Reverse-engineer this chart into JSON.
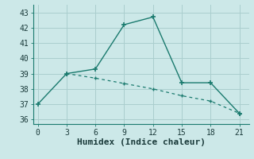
{
  "line1_x": [
    0,
    3,
    6,
    9,
    12,
    15,
    18,
    21
  ],
  "line1_y": [
    37.0,
    39.0,
    39.3,
    42.2,
    42.7,
    38.4,
    38.4,
    36.4
  ],
  "line2_x": [
    3,
    6,
    9,
    12,
    15,
    18,
    21
  ],
  "line2_y": [
    39.0,
    38.7,
    38.35,
    38.0,
    37.55,
    37.2,
    36.4
  ],
  "line_color": "#1a7a6e",
  "bg_color": "#cce8e8",
  "grid_color": "#aacece",
  "xlabel": "Humidex (Indice chaleur)",
  "xlim": [
    -0.5,
    22
  ],
  "ylim": [
    35.7,
    43.5
  ],
  "xticks": [
    0,
    3,
    6,
    9,
    12,
    15,
    18,
    21
  ],
  "yticks": [
    36,
    37,
    38,
    39,
    40,
    41,
    42,
    43
  ],
  "xlabel_fontsize": 8,
  "tick_fontsize": 7
}
